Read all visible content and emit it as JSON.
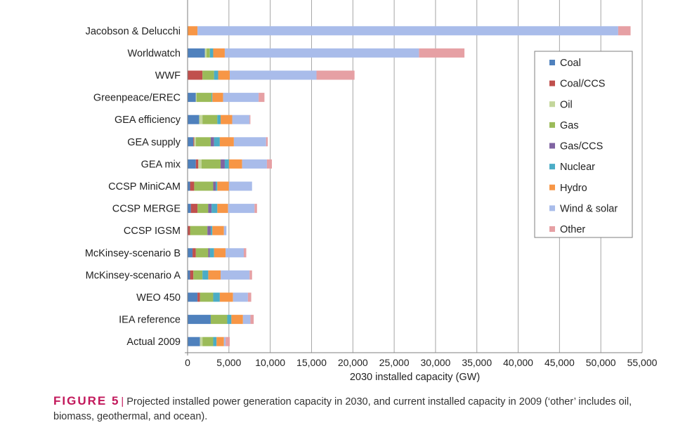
{
  "chart_data": {
    "type": "bar",
    "orientation": "horizontal",
    "stacked": true,
    "xlabel": "2030 installed capacity (GW)",
    "ylabel": "",
    "xlim": [
      0,
      55000
    ],
    "xticks": [
      0,
      5000,
      10000,
      15000,
      20000,
      25000,
      30000,
      35000,
      40000,
      45000,
      50000,
      55000
    ],
    "xtick_labels": [
      "0",
      "5,000",
      "10,000",
      "15,000",
      "20,000",
      "25,000",
      "30,000",
      "35,000",
      "40,000",
      "45,000",
      "50,000",
      "55,000"
    ],
    "grid": "vertical",
    "legend_position": "right",
    "categories": [
      "Jacobson & Delucchi",
      "Worldwatch",
      "WWF",
      "Greenpeace/EREC",
      "GEA efficiency",
      "GEA supply",
      "GEA mix",
      "CCSP MiniCAM",
      "CCSP MERGE",
      "CCSP IGSM",
      "McKinsey-scenario B",
      "McKinsey-scenario A",
      "WEO 450",
      "IEA reference",
      "Actual 2009"
    ],
    "series": [
      {
        "name": "Coal",
        "color": "#4f81bd",
        "values": [
          0,
          2100,
          0,
          1000,
          1400,
          700,
          1000,
          300,
          400,
          0,
          600,
          300,
          1200,
          2800,
          1500
        ]
      },
      {
        "name": "Coal/CCS",
        "color": "#c0504d",
        "values": [
          0,
          0,
          1800,
          0,
          0,
          100,
          300,
          500,
          800,
          300,
          400,
          400,
          300,
          0,
          0
        ]
      },
      {
        "name": "Oil",
        "color": "#c3d69b",
        "values": [
          0,
          200,
          0,
          100,
          400,
          200,
          400,
          0,
          0,
          0,
          0,
          0,
          0,
          0,
          300
        ]
      },
      {
        "name": "Gas",
        "color": "#9bbb59",
        "values": [
          0,
          400,
          1400,
          1800,
          1800,
          1800,
          2300,
          2300,
          1300,
          2100,
          1500,
          1100,
          1600,
          2000,
          1300
        ]
      },
      {
        "name": "Gas/CCS",
        "color": "#8064a2",
        "values": [
          0,
          0,
          0,
          0,
          0,
          400,
          500,
          300,
          400,
          400,
          200,
          0,
          0,
          0,
          0
        ]
      },
      {
        "name": "Nuclear",
        "color": "#4bacc6",
        "values": [
          0,
          400,
          500,
          100,
          400,
          700,
          500,
          200,
          700,
          200,
          500,
          700,
          800,
          500,
          400
        ]
      },
      {
        "name": "Hydro",
        "color": "#f79646",
        "values": [
          1200,
          1400,
          1400,
          1300,
          1400,
          1700,
          1600,
          1400,
          1300,
          1400,
          1400,
          1500,
          1600,
          1400,
          900
        ]
      },
      {
        "name": "Wind & solar",
        "color": "#a9bcea",
        "values": [
          50900,
          23500,
          10500,
          4300,
          2100,
          3900,
          3000,
          2800,
          3200,
          300,
          2200,
          3500,
          1800,
          900,
          200
        ]
      },
      {
        "name": "Other",
        "color": "#e6a0a4",
        "values": [
          1500,
          5500,
          4600,
          700,
          100,
          200,
          600,
          0,
          300,
          0,
          300,
          300,
          400,
          400,
          500
        ]
      }
    ]
  },
  "caption": {
    "label": "FIGURE 5",
    "separator": "|",
    "text": "Projected installed power generation capacity in 2030, and current installed capacity in 2009 (‘other’ includes oil, biomass, geothermal, and ocean)."
  }
}
